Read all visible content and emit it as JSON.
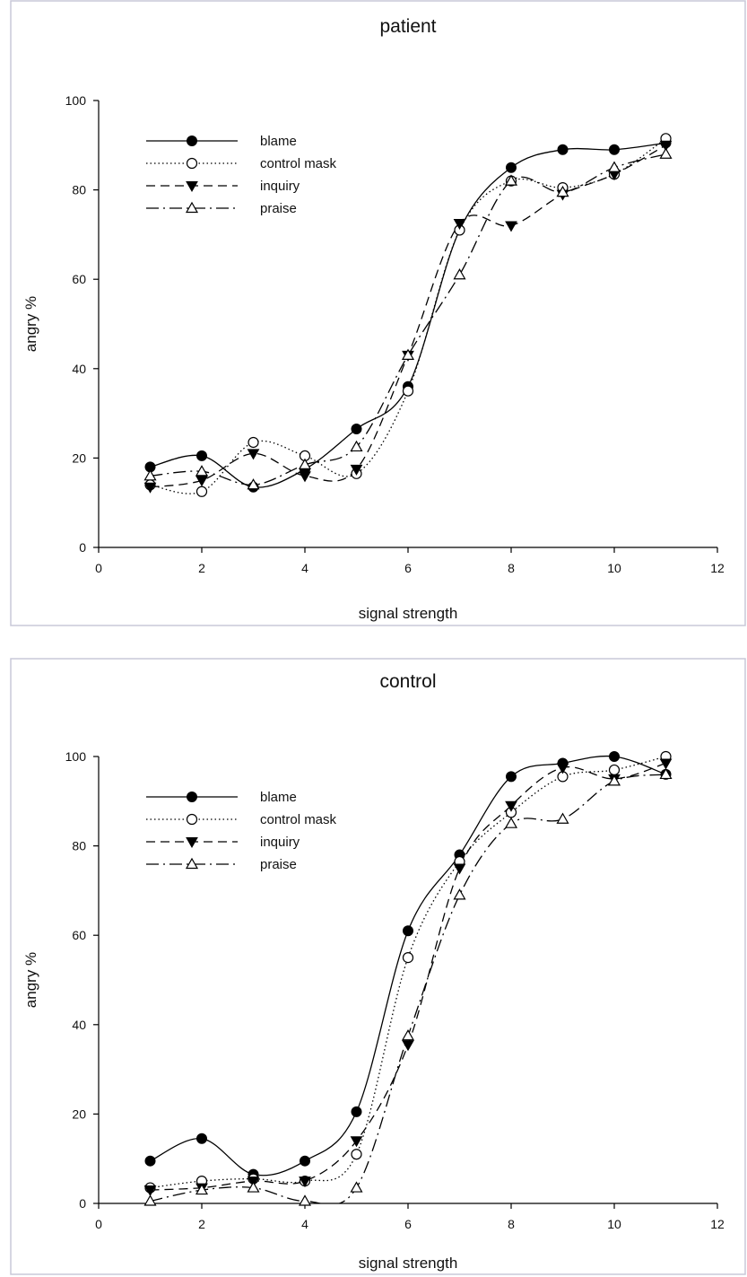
{
  "chart_data": [
    {
      "type": "line",
      "title": "patient",
      "xlabel": "signal strength",
      "ylabel": "angry %",
      "xlim": [
        0,
        12
      ],
      "ylim": [
        0,
        100
      ],
      "xticks": [
        "0",
        "2",
        "4",
        "6",
        "8",
        "10",
        "12"
      ],
      "yticks": [
        "0",
        "20",
        "40",
        "60",
        "80",
        "100"
      ],
      "grid": false,
      "legend_position": "top-left",
      "x": [
        1,
        2,
        3,
        4,
        5,
        6,
        7,
        8,
        9,
        10,
        11
      ],
      "series": [
        {
          "name": "blame",
          "marker": "filled-circle",
          "line": "solid",
          "values": [
            18,
            20.5,
            13.5,
            17.5,
            26.5,
            36,
            71,
            85,
            89,
            89,
            90.5
          ]
        },
        {
          "name": "control mask",
          "marker": "open-circle",
          "line": "dotted",
          "values": [
            14,
            12.5,
            23.5,
            20.5,
            16.5,
            35,
            71,
            82,
            80.5,
            83.5,
            91.5
          ]
        },
        {
          "name": "inquiry",
          "marker": "filled-triangle-down",
          "line": "dashed",
          "values": [
            13.5,
            15,
            21,
            16,
            17.5,
            43,
            72.5,
            72,
            79,
            83.5,
            90
          ]
        },
        {
          "name": "praise",
          "marker": "open-triangle-up",
          "line": "dash-dot",
          "values": [
            16,
            17,
            14,
            18.5,
            22.5,
            43,
            61,
            82,
            79.5,
            85,
            88
          ]
        }
      ]
    },
    {
      "type": "line",
      "title": "control",
      "xlabel": "signal strength",
      "ylabel": "angry %",
      "xlim": [
        0,
        12
      ],
      "ylim": [
        0,
        100
      ],
      "xticks": [
        "0",
        "2",
        "4",
        "6",
        "8",
        "10",
        "12"
      ],
      "yticks": [
        "0",
        "20",
        "40",
        "60",
        "80",
        "100"
      ],
      "grid": false,
      "legend_position": "top-left",
      "x": [
        1,
        2,
        3,
        4,
        5,
        6,
        7,
        8,
        9,
        10,
        11
      ],
      "series": [
        {
          "name": "blame",
          "marker": "filled-circle",
          "line": "solid",
          "values": [
            9.5,
            14.5,
            6.5,
            9.5,
            20.5,
            61,
            78,
            95.5,
            98.5,
            100,
            96
          ]
        },
        {
          "name": "control mask",
          "marker": "open-circle",
          "line": "dotted",
          "values": [
            3.5,
            5,
            5.5,
            5,
            11,
            55,
            76.5,
            87.5,
            95.5,
            97,
            100
          ]
        },
        {
          "name": "inquiry",
          "marker": "filled-triangle-down",
          "line": "dashed",
          "values": [
            3,
            3.5,
            5,
            5,
            14,
            35.5,
            75,
            89,
            97.5,
            95,
            98.5
          ]
        },
        {
          "name": "praise",
          "marker": "open-triangle-up",
          "line": "dash-dot",
          "values": [
            0.5,
            3,
            3.5,
            0.5,
            3.5,
            37.5,
            69,
            85,
            86,
            94.5,
            96
          ]
        }
      ]
    }
  ]
}
